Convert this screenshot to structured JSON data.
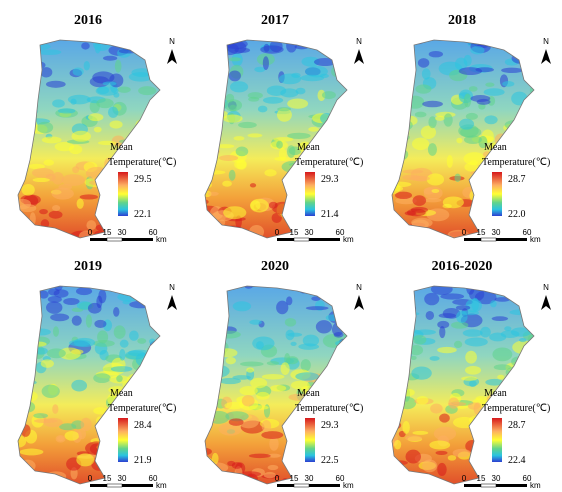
{
  "panels": [
    {
      "title": "2016",
      "north": "N",
      "legend": {
        "label": "Mean",
        "title": "Temperature(℃)",
        "max": "29.5",
        "min": "22.1"
      },
      "scale_bar": {
        "ticks": [
          "0",
          "15",
          "30",
          "60"
        ],
        "unit": "km"
      }
    },
    {
      "title": "2017",
      "north": "N",
      "legend": {
        "label": "Mean",
        "title": "Temperature(℃)",
        "max": "29.3",
        "min": "21.4"
      },
      "scale_bar": {
        "ticks": [
          "0",
          "15",
          "30",
          "60"
        ],
        "unit": "km"
      }
    },
    {
      "title": "2018",
      "north": "N",
      "legend": {
        "label": "Mean",
        "title": "Temperature(℃)",
        "max": "28.7",
        "min": "22.0"
      },
      "scale_bar": {
        "ticks": [
          "0",
          "15",
          "30",
          "60"
        ],
        "unit": "km"
      }
    },
    {
      "title": "2019",
      "north": "N",
      "legend": {
        "label": "Mean",
        "title": "Temperature(℃)",
        "max": "28.4",
        "min": "21.9"
      },
      "scale_bar": {
        "ticks": [
          "0",
          "15",
          "30",
          "60"
        ],
        "unit": "km"
      }
    },
    {
      "title": "2020",
      "north": "N",
      "legend": {
        "label": "Mean",
        "title": "Temperature(℃)",
        "max": "29.3",
        "min": "22.5"
      },
      "scale_bar": {
        "ticks": [
          "0",
          "15",
          "30",
          "60"
        ],
        "unit": "km"
      }
    },
    {
      "title": "2016-2020",
      "north": "N",
      "legend": {
        "label": "Mean",
        "title": "Temperature(℃)",
        "max": "28.7",
        "min": "22.4"
      },
      "scale_bar": {
        "ticks": [
          "0",
          "15",
          "30",
          "60"
        ],
        "unit": "km"
      }
    }
  ]
}
